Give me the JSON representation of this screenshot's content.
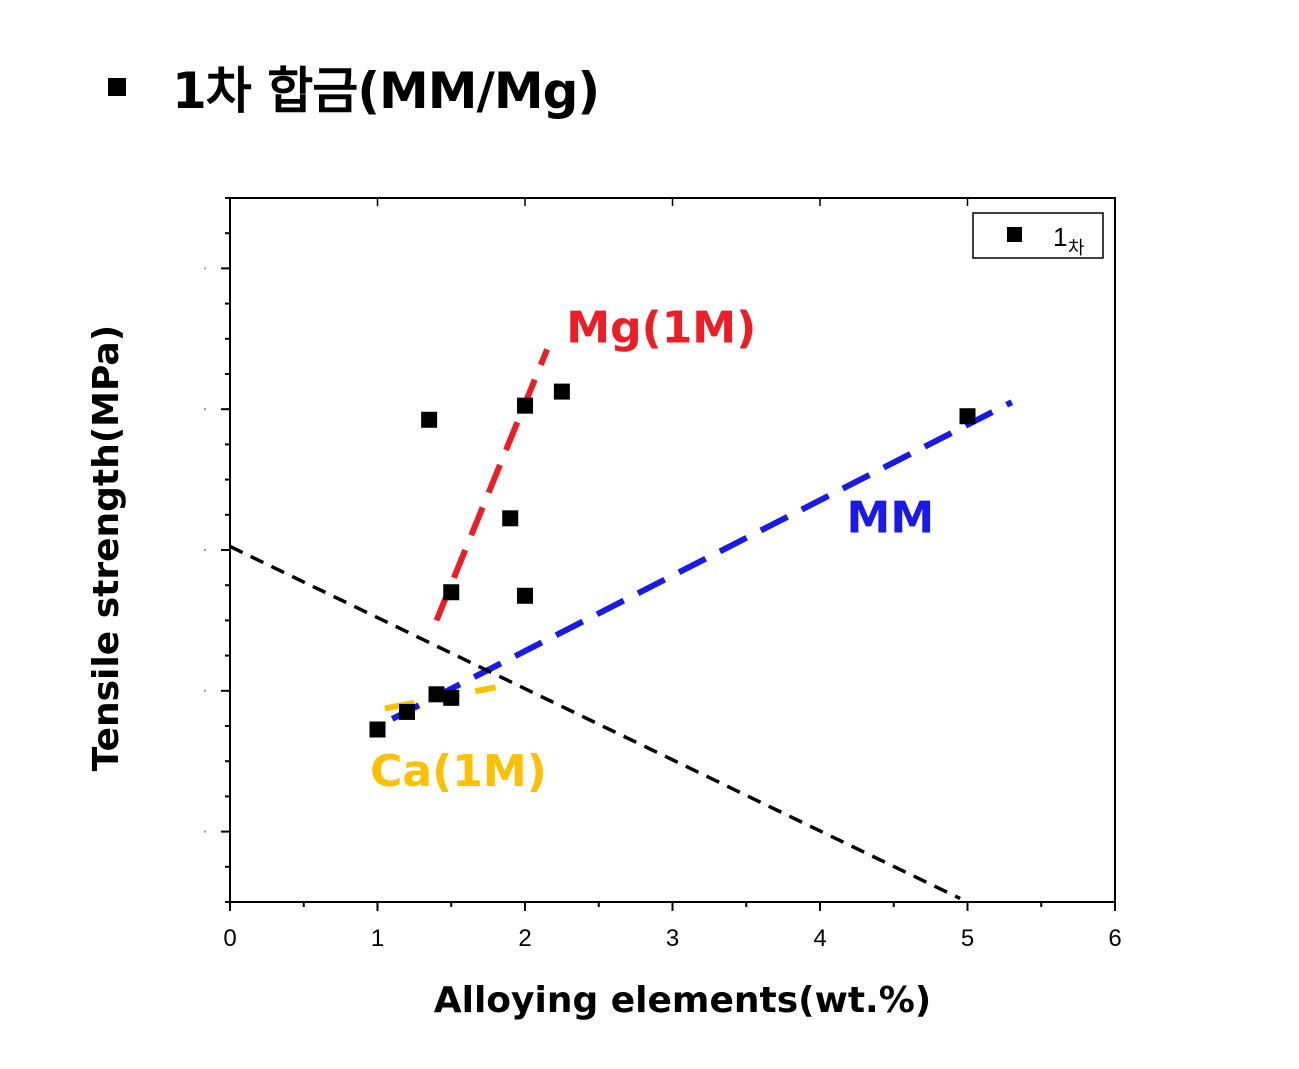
{
  "heading": {
    "text": "1차 합금(MM/Mg)"
  },
  "chart_data": {
    "type": "scatter",
    "title": "",
    "xlabel": "Alloying elements(wt.%)",
    "ylabel": "Tensile strength(MPa)",
    "xlim": [
      0,
      6
    ],
    "ylim": [
      0,
      100
    ],
    "x_ticks": [
      0,
      1,
      2,
      3,
      4,
      5,
      6
    ],
    "x_tick_labels": [
      "0",
      "1",
      "2",
      "3",
      "4",
      "5",
      "6"
    ],
    "y_major_ticks": [
      10,
      30,
      50,
      70,
      90
    ],
    "y_tick_labels_visible": false,
    "grid": false,
    "legend": {
      "position": "top-right",
      "entries": [
        {
          "main": "1",
          "sub": "차",
          "marker": "square",
          "color": "#000000"
        }
      ]
    },
    "series": [
      {
        "name": "1차",
        "marker": "square",
        "color": "#000000",
        "points": [
          {
            "x": 1.0,
            "y": 24.5
          },
          {
            "x": 1.2,
            "y": 27.0
          },
          {
            "x": 1.4,
            "y": 29.5
          },
          {
            "x": 1.5,
            "y": 29.0
          },
          {
            "x": 1.35,
            "y": 68.5
          },
          {
            "x": 1.5,
            "y": 44.0
          },
          {
            "x": 1.9,
            "y": 54.5
          },
          {
            "x": 2.0,
            "y": 70.5
          },
          {
            "x": 2.0,
            "y": 43.5
          },
          {
            "x": 2.25,
            "y": 72.5
          },
          {
            "x": 5.0,
            "y": 69.0
          }
        ]
      }
    ],
    "trend_lines": [
      {
        "label": "Mg(1M)",
        "color": "#ee1c24",
        "x": [
          1.4,
          2.15
        ],
        "y": [
          40.0,
          78.5
        ],
        "dash": "long"
      },
      {
        "label": "MM",
        "color": "#1a1ae6",
        "x": [
          1.1,
          5.3
        ],
        "y": [
          26.0,
          71.0
        ],
        "dash": "long"
      },
      {
        "label": "Ca(1M)",
        "color": "#ffc000",
        "x": [
          1.05,
          1.8
        ],
        "y": [
          27.5,
          30.5
        ],
        "dash": "long"
      },
      {
        "label": "",
        "color": "#000000",
        "x": [
          0.0,
          4.95
        ],
        "y": [
          50.5,
          0.5
        ],
        "dash": "short"
      }
    ],
    "annotations": [
      {
        "text": "Mg(1M)",
        "color": "#ee1c24",
        "x": 2.28,
        "y": 79.5
      },
      {
        "text": "MM",
        "color": "#1a1ae6",
        "x": 4.18,
        "y": 52.5
      },
      {
        "text": "Ca(1M)",
        "color": "#ffc000",
        "x": 0.95,
        "y": 16.5
      }
    ]
  }
}
